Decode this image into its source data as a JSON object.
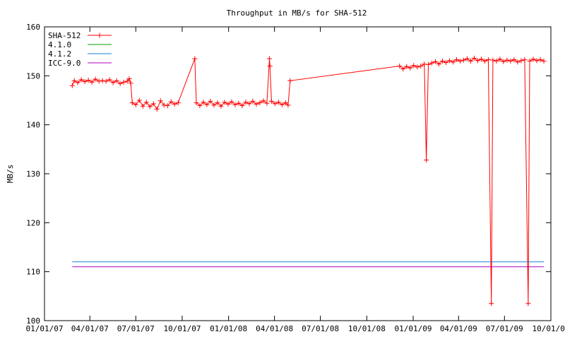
{
  "chart_data": {
    "type": "line",
    "title": "Throughput in MB/s for SHA-512",
    "ylabel": "MB/s",
    "xlabel": "",
    "ylim": [
      100,
      160
    ],
    "xlim": [
      "2007-01-01",
      "2009-10-01"
    ],
    "y_ticks": [
      100,
      110,
      120,
      130,
      140,
      150,
      160
    ],
    "x_ticks": [
      "2007-01-01",
      "2007-04-01",
      "2007-07-01",
      "2007-10-01",
      "2008-01-01",
      "2008-04-01",
      "2008-07-01",
      "2008-10-01",
      "2009-01-01",
      "2009-04-01",
      "2009-07-01",
      "2009-10-01"
    ],
    "x_tick_labels": [
      "01/01/07",
      "04/01/07",
      "07/01/07",
      "10/01/07",
      "01/01/08",
      "04/01/08",
      "07/01/08",
      "10/01/08",
      "01/01/09",
      "04/01/09",
      "07/01/09",
      "10/01/09"
    ],
    "legend_position": "top-left",
    "grid": false,
    "series": [
      {
        "name": "SHA-512",
        "color": "#ff0000",
        "marker": "plus",
        "points": [
          [
            "2007-02-25",
            148
          ],
          [
            "2007-03-01",
            149
          ],
          [
            "2007-03-08",
            148.6
          ],
          [
            "2007-03-15",
            149.2
          ],
          [
            "2007-03-22",
            148.8
          ],
          [
            "2007-03-29",
            149.1
          ],
          [
            "2007-04-05",
            148.7
          ],
          [
            "2007-04-12",
            149.3
          ],
          [
            "2007-04-19",
            148.9
          ],
          [
            "2007-04-26",
            149.0
          ],
          [
            "2007-05-03",
            148.9
          ],
          [
            "2007-05-10",
            149.2
          ],
          [
            "2007-05-17",
            148.6
          ],
          [
            "2007-05-24",
            149.0
          ],
          [
            "2007-05-31",
            148.4
          ],
          [
            "2007-06-07",
            148.7
          ],
          [
            "2007-06-14",
            148.9
          ],
          [
            "2007-06-18",
            149.4
          ],
          [
            "2007-06-21",
            148.5
          ],
          [
            "2007-06-24",
            144.5
          ],
          [
            "2007-07-01",
            144.1
          ],
          [
            "2007-07-08",
            145.0
          ],
          [
            "2007-07-15",
            143.8
          ],
          [
            "2007-07-22",
            144.6
          ],
          [
            "2007-07-29",
            143.7
          ],
          [
            "2007-08-05",
            144.3
          ],
          [
            "2007-08-12",
            143.2
          ],
          [
            "2007-08-19",
            144.9
          ],
          [
            "2007-08-26",
            144.0
          ],
          [
            "2007-09-02",
            143.9
          ],
          [
            "2007-09-09",
            144.7
          ],
          [
            "2007-09-16",
            144.2
          ],
          [
            "2007-09-23",
            144.5
          ],
          [
            "2007-10-26",
            153.5
          ],
          [
            "2007-10-29",
            144.5
          ],
          [
            "2007-11-05",
            143.9
          ],
          [
            "2007-11-12",
            144.6
          ],
          [
            "2007-11-19",
            144.1
          ],
          [
            "2007-11-26",
            144.8
          ],
          [
            "2007-12-03",
            144.0
          ],
          [
            "2007-12-10",
            144.5
          ],
          [
            "2007-12-17",
            143.8
          ],
          [
            "2007-12-24",
            144.6
          ],
          [
            "2007-12-31",
            144.2
          ],
          [
            "2008-01-07",
            144.7
          ],
          [
            "2008-01-14",
            144.1
          ],
          [
            "2008-01-21",
            144.4
          ],
          [
            "2008-01-28",
            143.9
          ],
          [
            "2008-02-04",
            144.6
          ],
          [
            "2008-02-11",
            144.3
          ],
          [
            "2008-02-18",
            144.8
          ],
          [
            "2008-02-25",
            144.2
          ],
          [
            "2008-03-03",
            144.5
          ],
          [
            "2008-03-10",
            144.9
          ],
          [
            "2008-03-17",
            144.4
          ],
          [
            "2008-03-22",
            153.5
          ],
          [
            "2008-03-23",
            152.0
          ],
          [
            "2008-03-26",
            144.8
          ],
          [
            "2008-04-02",
            144.3
          ],
          [
            "2008-04-09",
            144.6
          ],
          [
            "2008-04-16",
            144.1
          ],
          [
            "2008-04-23",
            144.5
          ],
          [
            "2008-04-28",
            144.0
          ],
          [
            "2008-05-02",
            149.0
          ],
          [
            "2008-12-05",
            152.0
          ],
          [
            "2008-12-12",
            151.4
          ],
          [
            "2008-12-19",
            151.9
          ],
          [
            "2008-12-26",
            151.6
          ],
          [
            "2009-01-02",
            152.1
          ],
          [
            "2009-01-09",
            151.8
          ],
          [
            "2009-01-16",
            152.0
          ],
          [
            "2009-01-23",
            152.4
          ],
          [
            "2009-01-27",
            132.8
          ],
          [
            "2009-01-31",
            152.3
          ],
          [
            "2009-02-07",
            152.6
          ],
          [
            "2009-02-14",
            152.9
          ],
          [
            "2009-02-21",
            152.4
          ],
          [
            "2009-02-28",
            153.0
          ],
          [
            "2009-03-07",
            152.7
          ],
          [
            "2009-03-14",
            153.1
          ],
          [
            "2009-03-21",
            152.8
          ],
          [
            "2009-03-28",
            153.3
          ],
          [
            "2009-04-04",
            153.0
          ],
          [
            "2009-04-11",
            153.2
          ],
          [
            "2009-04-18",
            153.5
          ],
          [
            "2009-04-25",
            153.0
          ],
          [
            "2009-05-02",
            153.6
          ],
          [
            "2009-05-09",
            153.1
          ],
          [
            "2009-05-16",
            153.4
          ],
          [
            "2009-05-23",
            153.0
          ],
          [
            "2009-05-30",
            153.3
          ],
          [
            "2009-06-05",
            103.5
          ],
          [
            "2009-06-08",
            153.2
          ],
          [
            "2009-06-15",
            153.0
          ],
          [
            "2009-06-22",
            153.4
          ],
          [
            "2009-06-29",
            152.9
          ],
          [
            "2009-07-06",
            153.2
          ],
          [
            "2009-07-13",
            153.0
          ],
          [
            "2009-07-20",
            153.3
          ],
          [
            "2009-07-27",
            152.8
          ],
          [
            "2009-08-03",
            153.1
          ],
          [
            "2009-08-10",
            153.3
          ],
          [
            "2009-08-17",
            103.5
          ],
          [
            "2009-08-20",
            153.0
          ],
          [
            "2009-08-27",
            153.4
          ],
          [
            "2009-09-03",
            153.1
          ],
          [
            "2009-09-10",
            153.3
          ],
          [
            "2009-09-17",
            153.0
          ]
        ]
      },
      {
        "name": "4.1.0",
        "color": "#00a000",
        "points": []
      },
      {
        "name": "4.1.2",
        "color": "#1e7fd6",
        "points": [
          [
            "2007-02-25",
            112
          ],
          [
            "2009-09-17",
            112
          ]
        ]
      },
      {
        "name": "ICC-9.0",
        "color": "#b000c0",
        "points": [
          [
            "2007-02-25",
            111
          ],
          [
            "2009-09-17",
            111
          ]
        ]
      }
    ]
  }
}
